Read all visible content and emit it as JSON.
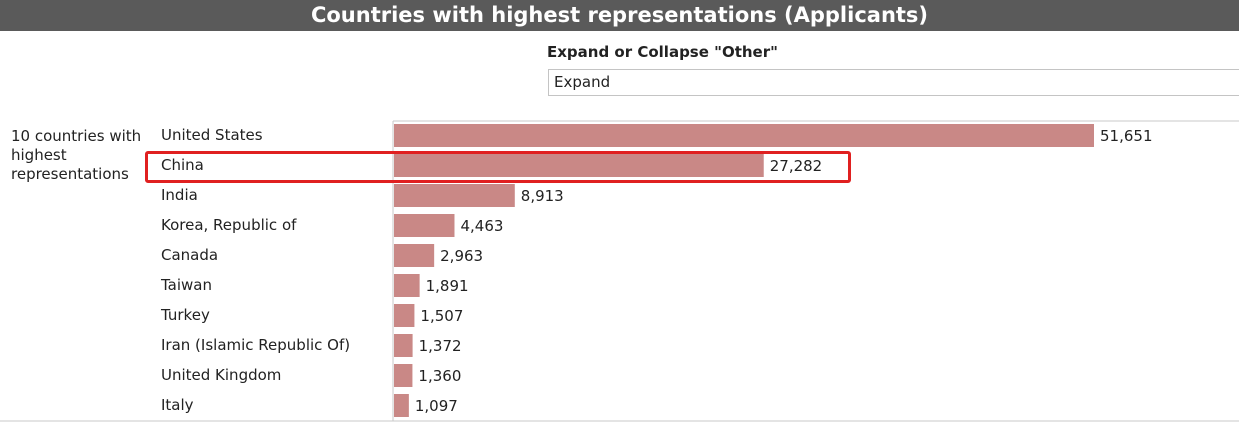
{
  "header": {
    "title": "Countries with highest representations (Applicants)"
  },
  "filter": {
    "label": "Expand or Collapse \"Other\"",
    "selected": "Expand"
  },
  "colors": {
    "bar": "#c98886",
    "highlight": "#e02020",
    "title_bg": "#5a5a5a"
  },
  "chart_data": {
    "type": "bar",
    "orientation": "horizontal",
    "group_label": "10 countries with highest representations",
    "categories": [
      "United States",
      "China",
      "India",
      "Korea, Republic of",
      "Canada",
      "Taiwan",
      "Turkey",
      "Iran (Islamic Republic Of)",
      "United Kingdom",
      "Italy"
    ],
    "values": [
      51651,
      27282,
      8913,
      4463,
      2963,
      1891,
      1507,
      1372,
      1360,
      1097
    ],
    "value_labels": [
      "51,651",
      "27,282",
      "8,913",
      "4,463",
      "2,963",
      "1,891",
      "1,507",
      "1,372",
      "1,360",
      "1,097"
    ],
    "highlighted_category": "China",
    "grid": false
  }
}
